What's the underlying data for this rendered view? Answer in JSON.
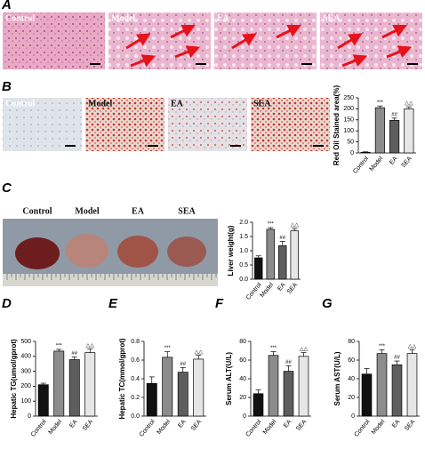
{
  "panel_letters": [
    "A",
    "B",
    "C",
    "D",
    "E",
    "F",
    "G"
  ],
  "image_labels": {
    "A": [
      "Control",
      "Model",
      "EA",
      "SEA"
    ],
    "B": [
      "Control",
      "Model",
      "EA",
      "SEA"
    ],
    "C": [
      "Control",
      "Model",
      "EA",
      "SEA"
    ]
  },
  "chart_data": [
    {
      "type": "bar",
      "ylabel": "Red Oil Stained area(%)",
      "categories": [
        "Control",
        "Model",
        "EA",
        "SEA"
      ],
      "values": [
        3,
        205,
        148,
        200
      ],
      "errors": [
        2,
        8,
        10,
        9
      ],
      "colors": [
        "#111111",
        "#8c8c8c",
        "#5e5e5e",
        "#e6e6e6"
      ],
      "annotations": [
        null,
        "***",
        "##",
        "△△"
      ],
      "ylim": [
        0,
        250
      ],
      "yticks": [
        0,
        50,
        100,
        150,
        200,
        250
      ]
    },
    {
      "type": "bar",
      "ylabel": "Liver weight(g)",
      "categories": [
        "Control",
        "Model",
        "EA",
        "SEA"
      ],
      "values": [
        0.75,
        1.75,
        1.18,
        1.7
      ],
      "errors": [
        0.07,
        0.06,
        0.15,
        0.08
      ],
      "colors": [
        "#111111",
        "#8c8c8c",
        "#5e5e5e",
        "#e6e6e6"
      ],
      "annotations": [
        null,
        "***",
        "##",
        "△△"
      ],
      "ylim": [
        0,
        2
      ],
      "yticks": [
        {
          "value": 0,
          "label": "0.0"
        },
        {
          "value": 0.5,
          "label": "0.5"
        },
        {
          "value": 1,
          "label": "1.0"
        },
        {
          "value": 1.5,
          "label": "1.5"
        },
        {
          "value": 2,
          "label": "2.0"
        }
      ]
    },
    {
      "type": "bar",
      "ylabel": "Hepatic TG(umol/gprot)",
      "categories": [
        "Control",
        "Model",
        "EA",
        "SEA"
      ],
      "values": [
        210,
        435,
        378,
        425
      ],
      "errors": [
        10,
        12,
        18,
        25
      ],
      "colors": [
        "#111111",
        "#8c8c8c",
        "#5e5e5e",
        "#e6e6e6"
      ],
      "annotations": [
        null,
        "***",
        "##",
        "△△"
      ],
      "ylim": [
        0,
        500
      ],
      "yticks": [
        0,
        100,
        200,
        300,
        400,
        500
      ]
    },
    {
      "type": "bar",
      "ylabel": "Hepatic TC(mmol/gprot)",
      "categories": [
        "Control",
        "Model",
        "EA",
        "SEA"
      ],
      "values": [
        0.35,
        0.63,
        0.47,
        0.61
      ],
      "errors": [
        0.07,
        0.06,
        0.05,
        0.04
      ],
      "colors": [
        "#111111",
        "#8c8c8c",
        "#5e5e5e",
        "#e6e6e6"
      ],
      "annotations": [
        null,
        "***",
        "##",
        "△△"
      ],
      "ylim": [
        0,
        0.8
      ],
      "yticks": [
        {
          "value": 0,
          "label": "0.0"
        },
        0.2,
        0.4,
        0.6,
        0.8
      ]
    },
    {
      "type": "bar",
      "ylabel": "Serum ALT(U/L)",
      "categories": [
        "Control",
        "Model",
        "EA",
        "SEA"
      ],
      "values": [
        24,
        65,
        48,
        64
      ],
      "errors": [
        4,
        4,
        6,
        4
      ],
      "colors": [
        "#111111",
        "#8c8c8c",
        "#5e5e5e",
        "#e6e6e6"
      ],
      "annotations": [
        null,
        "***",
        "##",
        "△△"
      ],
      "ylim": [
        0,
        80
      ],
      "yticks": [
        0,
        20,
        40,
        60,
        80
      ]
    },
    {
      "type": "bar",
      "ylabel": "Serum AST(U/L)",
      "categories": [
        "Control",
        "Model",
        "EA",
        "SEA"
      ],
      "values": [
        45,
        67,
        55,
        67
      ],
      "errors": [
        6,
        4,
        4,
        4
      ],
      "colors": [
        "#111111",
        "#8c8c8c",
        "#5e5e5e",
        "#e6e6e6"
      ],
      "annotations": [
        null,
        "***",
        "##",
        "△△"
      ],
      "ylim": [
        0,
        80
      ],
      "yticks": [
        0,
        20,
        40,
        60,
        80
      ]
    }
  ]
}
